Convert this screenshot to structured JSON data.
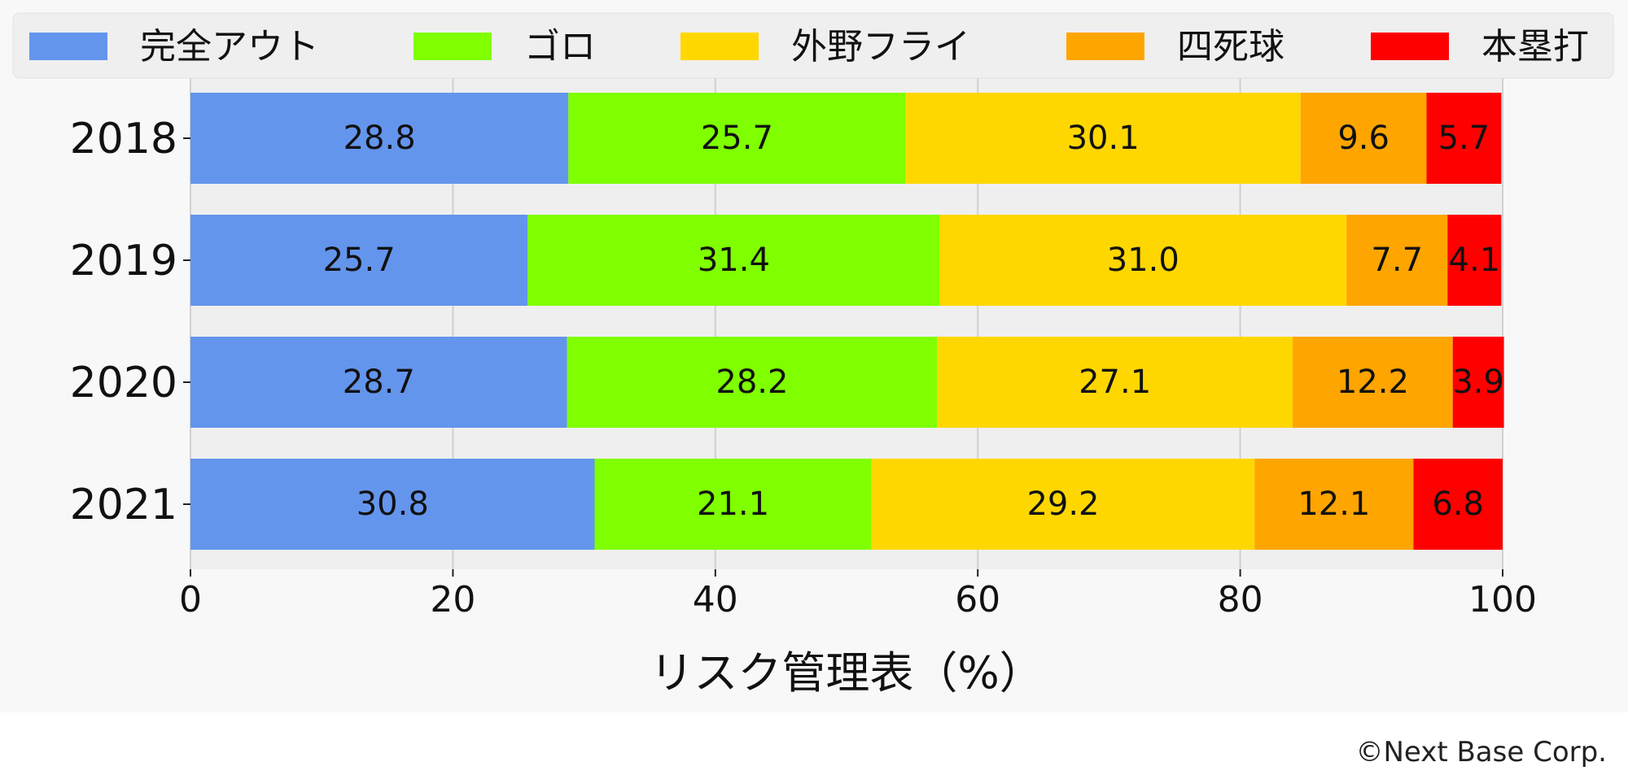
{
  "chart_data": {
    "type": "bar",
    "orientation": "horizontal",
    "stacked": true,
    "categories": [
      "2018",
      "2019",
      "2020",
      "2021"
    ],
    "series": [
      {
        "name": "完全アウト",
        "color": "#6495ED",
        "values": [
          28.8,
          25.7,
          28.7,
          30.8
        ]
      },
      {
        "name": "ゴロ",
        "color": "#7FFF00",
        "values": [
          25.7,
          31.4,
          28.2,
          21.1
        ]
      },
      {
        "name": "外野フライ",
        "color": "#FFD700",
        "values": [
          30.1,
          31.0,
          27.1,
          29.2
        ]
      },
      {
        "name": "四死球",
        "color": "#FFA500",
        "values": [
          9.6,
          7.7,
          12.2,
          12.1
        ]
      },
      {
        "name": "本塁打",
        "color": "#FF0000",
        "values": [
          5.7,
          4.1,
          3.9,
          6.8
        ]
      }
    ],
    "xlabel": "リスク管理表（%）",
    "ylabel": "",
    "xlim": [
      0,
      100
    ],
    "xticks": [
      0,
      20,
      40,
      60,
      80,
      100
    ],
    "grid": "vertical",
    "legend": "top"
  },
  "credit": "©Next Base Corp."
}
